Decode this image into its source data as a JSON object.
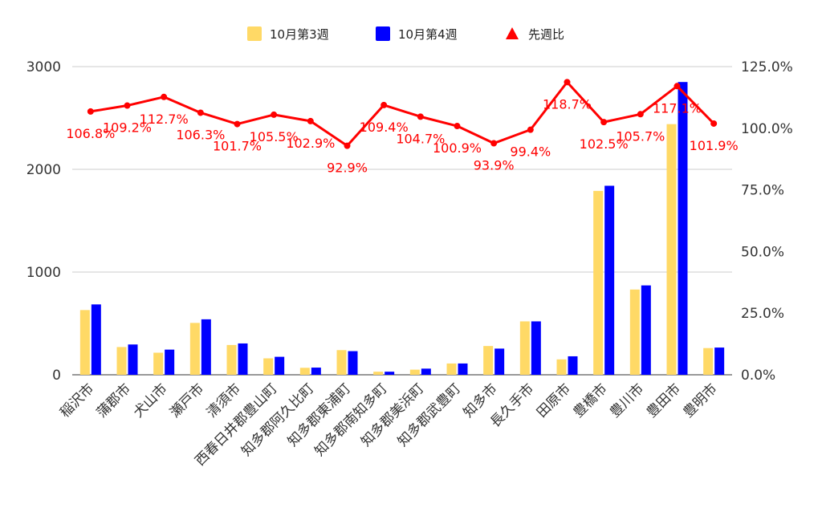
{
  "chart_data": {
    "type": "bar",
    "categories": [
      "稲沢市",
      "蒲郡市",
      "犬山市",
      "瀬戸市",
      "清須市",
      "西春日井郡豊山町",
      "知多郡阿久比町",
      "知多郡東浦町",
      "知多郡南知多町",
      "知多郡美浜町",
      "知多郡武豊町",
      "知多市",
      "長久手市",
      "田原市",
      "豊橋市",
      "豊川市",
      "豊田市",
      "豊明市"
    ],
    "series": [
      {
        "name": "10月第3週",
        "axis": "left",
        "kind": "bar",
        "color": "#ffd966",
        "values": [
          630,
          270,
          215,
          505,
          290,
          160,
          68,
          240,
          30,
          50,
          110,
          280,
          520,
          150,
          1790,
          830,
          2440,
          260
        ]
      },
      {
        "name": "10月第4週",
        "axis": "left",
        "kind": "bar",
        "color": "#0000ff",
        "values": [
          685,
          295,
          245,
          540,
          305,
          175,
          70,
          230,
          30,
          60,
          110,
          255,
          520,
          180,
          1840,
          870,
          2850,
          265
        ]
      },
      {
        "name": "先週比",
        "axis": "right",
        "kind": "line",
        "color": "#ff0000",
        "values": [
          106.8,
          109.2,
          112.7,
          106.3,
          101.7,
          105.5,
          102.9,
          92.9,
          109.4,
          104.7,
          100.9,
          93.9,
          99.4,
          118.7,
          102.5,
          105.7,
          117.1,
          101.9
        ],
        "labels": [
          "106.8%",
          "109.2%",
          "112.7%",
          "106.3%",
          "101.7%",
          "105.5%",
          "102.9%",
          "92.9%",
          "109.4%",
          "104.7%",
          "100.9%",
          "93.9%",
          "99.4%",
          "118.7%",
          "102.5%",
          "105.7%",
          "117.1%",
          "101.9%"
        ]
      }
    ],
    "y_left": {
      "ticks": [
        0,
        1000,
        2000,
        3000
      ],
      "tick_labels": [
        "0",
        "1000",
        "2000",
        "3000"
      ],
      "ylim": [
        0,
        3000
      ]
    },
    "y_right": {
      "ticks": [
        0,
        25,
        50,
        75,
        100,
        125
      ],
      "tick_labels": [
        "0.0%",
        "25.0%",
        "50.0%",
        "75.0%",
        "100.0%",
        "125.0%"
      ],
      "ylim": [
        0,
        125
      ]
    },
    "legend": {
      "position": "top",
      "items": [
        {
          "label": "10月第3週",
          "marker": "square",
          "color": "#ffd966"
        },
        {
          "label": "10月第4週",
          "marker": "square",
          "color": "#0000ff"
        },
        {
          "label": "先週比",
          "marker": "triangle",
          "color": "#ff0000"
        }
      ]
    },
    "grid": true
  }
}
